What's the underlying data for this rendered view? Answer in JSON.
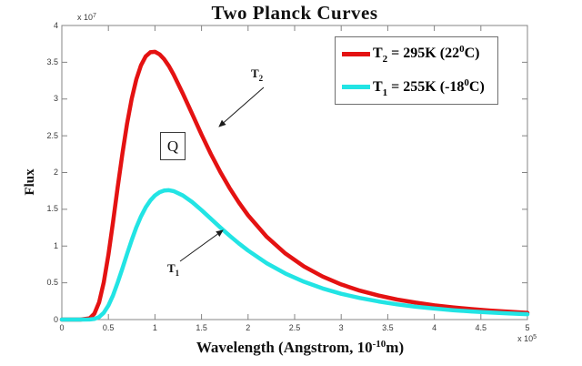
{
  "title": "Two Planck Curves",
  "axes": {
    "xlabel": {
      "pre": "Wavelength (Angstrom, 10",
      "sup": "-10",
      "post": "m)"
    },
    "ylabel": "Flux",
    "y_exponent": {
      "base": "x 10",
      "sup": "7"
    },
    "x_exponent": {
      "base": "x 10",
      "sup": "5"
    },
    "x_ticks": [
      "0",
      "0.5",
      "1",
      "1.5",
      "2",
      "2.5",
      "3",
      "3.5",
      "4",
      "4.5",
      "5"
    ],
    "x_tick_values": [
      0,
      0.5,
      1,
      1.5,
      2,
      2.5,
      3,
      3.5,
      4,
      4.5,
      5
    ],
    "y_ticks": [
      "0",
      "0.5",
      "1",
      "1.5",
      "2",
      "2.5",
      "3",
      "3.5",
      "4"
    ],
    "y_tick_values": [
      0,
      0.5,
      1,
      1.5,
      2,
      2.5,
      3,
      3.5,
      4
    ]
  },
  "legend": {
    "entries": [
      {
        "color": "#e41212",
        "sym": "T",
        "sub": "2",
        "mid": " = 295K (22",
        "sup": "0",
        "end": "C)"
      },
      {
        "color": "#22e4e4",
        "sym": "T",
        "sub": "1",
        "mid": " = 255K (-18",
        "sup": "0",
        "end": "C)"
      }
    ]
  },
  "annotations": {
    "t2": {
      "sym": "T",
      "sub": "2"
    },
    "t1": {
      "sym": "T",
      "sub": "1"
    },
    "q": "Q"
  },
  "chart_data": {
    "type": "line",
    "title": "Two Planck Curves",
    "xlabel": "Wavelength (Angstrom, 10^-10 m)",
    "ylabel": "Flux",
    "x_axis_multiplier": "x 10^5",
    "y_axis_multiplier": "x 10^7",
    "xlim": [
      0,
      5
    ],
    "ylim": [
      0,
      4
    ],
    "grid": false,
    "legend_position": "upper right",
    "annotations": [
      "T_2 (arrow to red curve)",
      "T_1 (arrow to cyan curve)",
      "Q (boxed)"
    ],
    "x": [
      0,
      0.1,
      0.2,
      0.3,
      0.35,
      0.4,
      0.45,
      0.5,
      0.55,
      0.6,
      0.65,
      0.7,
      0.75,
      0.8,
      0.85,
      0.9,
      0.95,
      1.0,
      1.05,
      1.1,
      1.15,
      1.2,
      1.3,
      1.4,
      1.5,
      1.6,
      1.7,
      1.8,
      1.9,
      2.0,
      2.2,
      2.4,
      2.6,
      2.8,
      3.0,
      3.2,
      3.4,
      3.6,
      3.8,
      4.0,
      4.2,
      4.4,
      4.6,
      4.8,
      5.0
    ],
    "series": [
      {
        "name": "T_2 = 295K (22^0C)",
        "color": "#e41212",
        "values": [
          0,
          0,
          0,
          0.017,
          0.08,
          0.235,
          0.506,
          0.88,
          1.327,
          1.799,
          2.256,
          2.663,
          3.002,
          3.267,
          3.457,
          3.58,
          3.636,
          3.642,
          3.607,
          3.54,
          3.446,
          3.333,
          3.072,
          2.795,
          2.517,
          2.254,
          2.011,
          1.792,
          1.594,
          1.418,
          1.126,
          0.899,
          0.723,
          0.586,
          0.478,
          0.394,
          0.327,
          0.273,
          0.23,
          0.194,
          0.166,
          0.142,
          0.122,
          0.106,
          0.092
        ]
      },
      {
        "name": "T_1 = 255K (-18^0C)",
        "color": "#22e4e4",
        "values": [
          0,
          0,
          0,
          0.001,
          0.009,
          0.035,
          0.092,
          0.191,
          0.33,
          0.503,
          0.695,
          0.892,
          1.08,
          1.254,
          1.402,
          1.526,
          1.62,
          1.688,
          1.733,
          1.755,
          1.76,
          1.747,
          1.688,
          1.597,
          1.488,
          1.372,
          1.255,
          1.143,
          1.037,
          0.939,
          0.767,
          0.627,
          0.515,
          0.424,
          0.351,
          0.293,
          0.246,
          0.207,
          0.175,
          0.15,
          0.128,
          0.11,
          0.096,
          0.083,
          0.073
        ]
      }
    ]
  }
}
